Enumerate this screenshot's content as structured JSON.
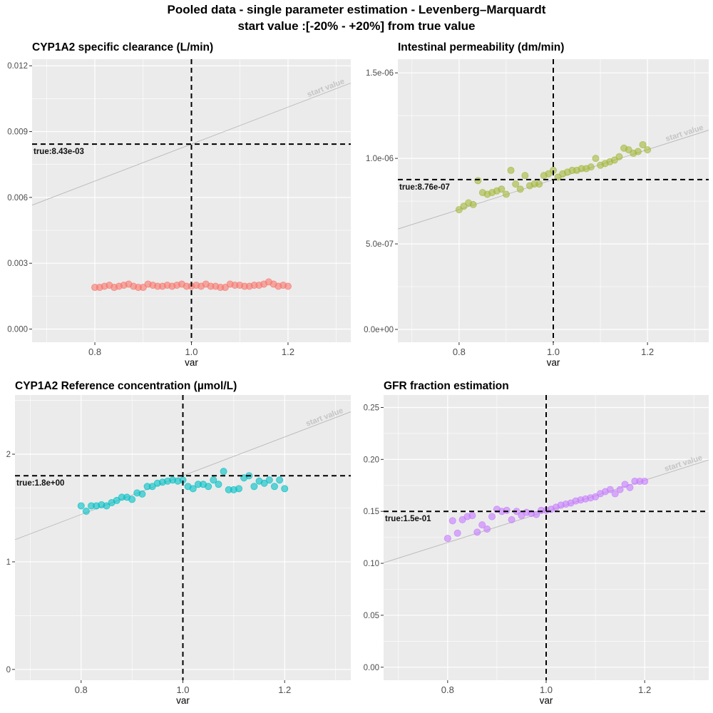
{
  "suptitle": {
    "line1": "Pooled data - single parameter estimation - Levenberg–Marquardt",
    "line2": "start value :[-20% - +20%] from true value"
  },
  "colors": {
    "panel_bg": "#ebebeb",
    "grid": "#ffffff",
    "true_line": "#000000",
    "start_line": "#b3b3b3",
    "start_label": "#c4c4c4"
  },
  "chart_data": [
    {
      "type": "scatter",
      "title": "CYP1A2 specific clearance (L/min)",
      "xlabel": "var",
      "ylabel": "",
      "xlim": [
        0.67,
        1.33
      ],
      "ylim": [
        -0.0006,
        0.0123
      ],
      "xticks": [
        0.8,
        1.0,
        1.2
      ],
      "xtick_labels": [
        "0.8",
        "1.0",
        "1.2"
      ],
      "yticks": [
        0.0,
        0.003,
        0.006,
        0.009,
        0.012
      ],
      "ytick_labels": [
        "0.000",
        "0.003",
        "0.006",
        "0.009",
        "0.012"
      ],
      "true_value": 0.00843,
      "true_label": "true:8.43e-03",
      "vline_x": 1.0,
      "start_value_label": "start value",
      "point_color": "#f8766d",
      "x": [
        0.8,
        0.81,
        0.82,
        0.83,
        0.84,
        0.85,
        0.86,
        0.87,
        0.88,
        0.89,
        0.9,
        0.91,
        0.92,
        0.93,
        0.94,
        0.95,
        0.96,
        0.97,
        0.98,
        0.99,
        1.0,
        1.01,
        1.02,
        1.03,
        1.04,
        1.05,
        1.06,
        1.07,
        1.08,
        1.09,
        1.1,
        1.11,
        1.12,
        1.13,
        1.14,
        1.15,
        1.16,
        1.17,
        1.18,
        1.19,
        1.2
      ],
      "y": [
        0.0019,
        0.0019,
        0.00195,
        0.002,
        0.0019,
        0.00195,
        0.002,
        0.00205,
        0.00195,
        0.0019,
        0.0019,
        0.00205,
        0.002,
        0.00195,
        0.00195,
        0.002,
        0.00195,
        0.002,
        0.00205,
        0.00195,
        0.00195,
        0.002,
        0.00195,
        0.00205,
        0.00195,
        0.00195,
        0.0019,
        0.0019,
        0.00205,
        0.002,
        0.002,
        0.00195,
        0.00195,
        0.002,
        0.002,
        0.00205,
        0.00215,
        0.00205,
        0.00195,
        0.002,
        0.00195
      ]
    },
    {
      "type": "scatter",
      "title": "Intestinal permeability (dm/min)",
      "xlabel": "var",
      "ylabel": "",
      "xlim": [
        0.67,
        1.33
      ],
      "ylim": [
        -7.5e-08,
        1.58e-06
      ],
      "xticks": [
        0.8,
        1.0,
        1.2
      ],
      "xtick_labels": [
        "0.8",
        "1.0",
        "1.2"
      ],
      "yticks": [
        0.0,
        5e-07,
        1e-06,
        1.5e-06
      ],
      "ytick_labels": [
        "0.0e+00",
        "5.0e-07",
        "1.0e-06",
        "1.5e-06"
      ],
      "true_value": 8.76e-07,
      "true_label": "true:8.76e-07",
      "vline_x": 1.0,
      "start_value_label": "start value",
      "point_color": "#a3b83a",
      "x": [
        0.8,
        0.81,
        0.82,
        0.83,
        0.84,
        0.85,
        0.86,
        0.87,
        0.88,
        0.89,
        0.9,
        0.91,
        0.92,
        0.93,
        0.94,
        0.95,
        0.96,
        0.97,
        0.98,
        0.99,
        1.0,
        1.01,
        1.02,
        1.03,
        1.04,
        1.05,
        1.06,
        1.07,
        1.08,
        1.09,
        1.1,
        1.11,
        1.12,
        1.13,
        1.14,
        1.15,
        1.16,
        1.17,
        1.18,
        1.19,
        1.2
      ],
      "y": [
        7e-07,
        7.2e-07,
        7.4e-07,
        7.3e-07,
        8.7e-07,
        8e-07,
        7.9e-07,
        8e-07,
        8.1e-07,
        8.2e-07,
        7.9e-07,
        9.3e-07,
        8.5e-07,
        8.2e-07,
        9e-07,
        8.4e-07,
        8.5e-07,
        8.5e-07,
        9e-07,
        9.1e-07,
        9.3e-07,
        8.9e-07,
        9.1e-07,
        9.2e-07,
        9.3e-07,
        9.3e-07,
        9.4e-07,
        9.4e-07,
        9.5e-07,
        1e-06,
        9.6e-07,
        9.7e-07,
        9.8e-07,
        9.9e-07,
        1.01e-06,
        1.06e-06,
        1.05e-06,
        1.03e-06,
        1.04e-06,
        1.08e-06,
        1.05e-06
      ]
    },
    {
      "type": "scatter",
      "title": "CYP1A2 Reference concentration (µmol/L)",
      "xlabel": "var",
      "ylabel": "",
      "xlim": [
        0.67,
        1.33
      ],
      "ylim": [
        -0.1,
        2.55
      ],
      "xticks": [
        0.8,
        1.0,
        1.2
      ],
      "xtick_labels": [
        "0.8",
        "1.0",
        "1.2"
      ],
      "yticks": [
        0,
        1,
        2
      ],
      "ytick_labels": [
        "0",
        "1",
        "2"
      ],
      "true_value": 1.8,
      "true_label": "true:1.8e+00",
      "vline_x": 1.0,
      "start_value_label": "start value",
      "point_color": "#00bfc4",
      "x": [
        0.8,
        0.81,
        0.82,
        0.83,
        0.84,
        0.85,
        0.86,
        0.87,
        0.88,
        0.89,
        0.9,
        0.91,
        0.92,
        0.93,
        0.94,
        0.95,
        0.96,
        0.97,
        0.98,
        0.99,
        1.0,
        1.01,
        1.02,
        1.03,
        1.04,
        1.05,
        1.06,
        1.07,
        1.08,
        1.09,
        1.1,
        1.11,
        1.12,
        1.13,
        1.14,
        1.15,
        1.16,
        1.17,
        1.18,
        1.19,
        1.2
      ],
      "y": [
        1.52,
        1.47,
        1.52,
        1.52,
        1.53,
        1.52,
        1.55,
        1.57,
        1.6,
        1.6,
        1.58,
        1.64,
        1.63,
        1.7,
        1.7,
        1.73,
        1.74,
        1.75,
        1.76,
        1.75,
        1.76,
        1.7,
        1.68,
        1.72,
        1.72,
        1.7,
        1.76,
        1.72,
        1.84,
        1.67,
        1.67,
        1.68,
        1.78,
        1.8,
        1.7,
        1.75,
        1.73,
        1.76,
        1.7,
        1.76,
        1.68
      ]
    },
    {
      "type": "scatter",
      "title": "GFR fraction estimation",
      "xlabel": "var",
      "ylabel": "",
      "xlim": [
        0.67,
        1.33
      ],
      "ylim": [
        -0.0125,
        0.262
      ],
      "xticks": [
        0.8,
        1.0,
        1.2
      ],
      "xtick_labels": [
        "0.8",
        "1.0",
        "1.2"
      ],
      "yticks": [
        0.0,
        0.05,
        0.1,
        0.15,
        0.2,
        0.25
      ],
      "ytick_labels": [
        "0.00",
        "0.05",
        "0.10",
        "0.15",
        "0.20",
        "0.25"
      ],
      "true_value": 0.15,
      "true_label": "true:1.5e-01",
      "vline_x": 1.0,
      "start_value_label": "start value",
      "point_color": "#c77cff",
      "x": [
        0.8,
        0.81,
        0.82,
        0.83,
        0.84,
        0.85,
        0.86,
        0.87,
        0.88,
        0.89,
        0.9,
        0.91,
        0.92,
        0.93,
        0.94,
        0.95,
        0.96,
        0.97,
        0.98,
        0.99,
        1.0,
        1.01,
        1.02,
        1.03,
        1.04,
        1.05,
        1.06,
        1.07,
        1.08,
        1.09,
        1.1,
        1.11,
        1.12,
        1.13,
        1.14,
        1.15,
        1.16,
        1.17,
        1.18,
        1.19,
        1.2
      ],
      "y": [
        0.124,
        0.141,
        0.129,
        0.142,
        0.145,
        0.146,
        0.13,
        0.137,
        0.133,
        0.145,
        0.152,
        0.15,
        0.151,
        0.142,
        0.15,
        0.146,
        0.149,
        0.148,
        0.147,
        0.151,
        0.151,
        0.152,
        0.154,
        0.156,
        0.157,
        0.158,
        0.16,
        0.161,
        0.162,
        0.163,
        0.164,
        0.167,
        0.169,
        0.171,
        0.167,
        0.171,
        0.176,
        0.173,
        0.179,
        0.179,
        0.179
      ]
    }
  ]
}
